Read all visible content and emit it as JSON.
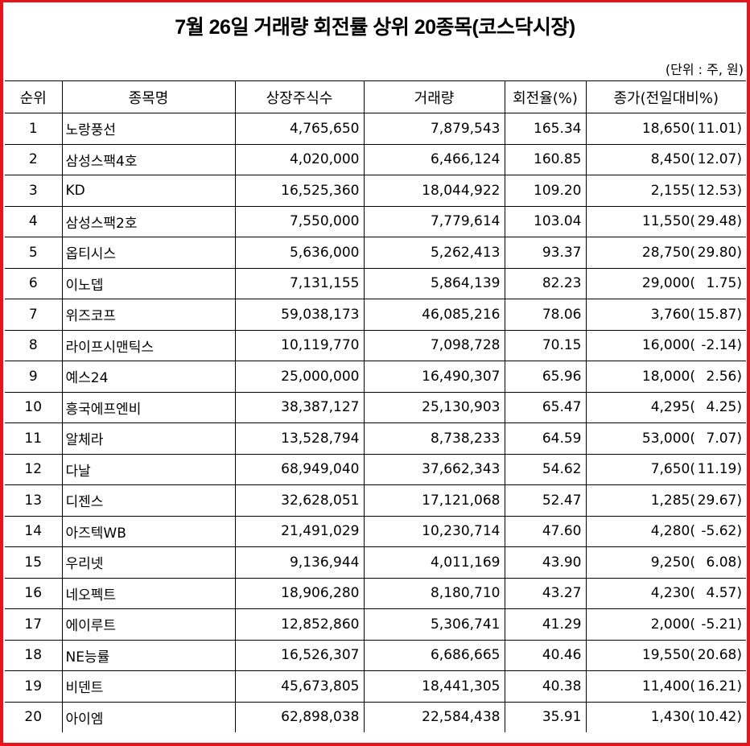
{
  "title": "7월 26일 거래량 회전률 상위 20종목(코스닥시장)",
  "unit_note": "(단위 : 주, 원)",
  "colors": {
    "frame_border": "#e8141c",
    "grid": "#000000"
  },
  "table": {
    "headers": [
      "순위",
      "종목명",
      "상장주식수",
      "거래량",
      "회전율(%)",
      "종가(전일대비%)"
    ],
    "rows": [
      {
        "rank": "1",
        "name": "노랑풍선",
        "listed_shares": "4,765,650",
        "volume": "7,879,543",
        "turnover": "165.34",
        "close": "18,650(",
        "change": "11.01)"
      },
      {
        "rank": "2",
        "name": "삼성스팩4호",
        "listed_shares": "4,020,000",
        "volume": "6,466,124",
        "turnover": "160.85",
        "close": "8,450(",
        "change": "12.07)"
      },
      {
        "rank": "3",
        "name": "KD",
        "listed_shares": "16,525,360",
        "volume": "18,044,922",
        "turnover": "109.20",
        "close": "2,155(",
        "change": "12.53)"
      },
      {
        "rank": "4",
        "name": "삼성스팩2호",
        "listed_shares": "7,550,000",
        "volume": "7,779,614",
        "turnover": "103.04",
        "close": "11,550(",
        "change": "29.48)"
      },
      {
        "rank": "5",
        "name": "옵티시스",
        "listed_shares": "5,636,000",
        "volume": "5,262,413",
        "turnover": "93.37",
        "close": "28,750(",
        "change": "29.80)"
      },
      {
        "rank": "6",
        "name": "이노뎁",
        "listed_shares": "7,131,155",
        "volume": "5,864,139",
        "turnover": "82.23",
        "close": "29,000(",
        "change": "1.75)"
      },
      {
        "rank": "7",
        "name": "위즈코프",
        "listed_shares": "59,038,173",
        "volume": "46,085,216",
        "turnover": "78.06",
        "close": "3,760(",
        "change": "15.87)"
      },
      {
        "rank": "8",
        "name": "라이프시맨틱스",
        "listed_shares": "10,119,770",
        "volume": "7,098,728",
        "turnover": "70.15",
        "close": "16,000(",
        "change": "-2.14)"
      },
      {
        "rank": "9",
        "name": "예스24",
        "listed_shares": "25,000,000",
        "volume": "16,490,307",
        "turnover": "65.96",
        "close": "18,000(",
        "change": "2.56)"
      },
      {
        "rank": "10",
        "name": "흥국에프엔비",
        "listed_shares": "38,387,127",
        "volume": "25,130,903",
        "turnover": "65.47",
        "close": "4,295(",
        "change": "4.25)"
      },
      {
        "rank": "11",
        "name": "알체라",
        "listed_shares": "13,528,794",
        "volume": "8,738,233",
        "turnover": "64.59",
        "close": "53,000(",
        "change": "7.07)"
      },
      {
        "rank": "12",
        "name": "다날",
        "listed_shares": "68,949,040",
        "volume": "37,662,343",
        "turnover": "54.62",
        "close": "7,650(",
        "change": "11.19)"
      },
      {
        "rank": "13",
        "name": "디젠스",
        "listed_shares": "32,628,051",
        "volume": "17,121,068",
        "turnover": "52.47",
        "close": "1,285(",
        "change": "29.67)"
      },
      {
        "rank": "14",
        "name": "아즈텍WB",
        "listed_shares": "21,491,029",
        "volume": "10,230,714",
        "turnover": "47.60",
        "close": "4,280(",
        "change": "-5.62)"
      },
      {
        "rank": "15",
        "name": "우리넷",
        "listed_shares": "9,136,944",
        "volume": "4,011,169",
        "turnover": "43.90",
        "close": "9,250(",
        "change": "6.08)"
      },
      {
        "rank": "16",
        "name": "네오펙트",
        "listed_shares": "18,906,280",
        "volume": "8,180,710",
        "turnover": "43.27",
        "close": "4,230(",
        "change": "4.57)"
      },
      {
        "rank": "17",
        "name": "에이루트",
        "listed_shares": "12,852,860",
        "volume": "5,306,741",
        "turnover": "41.29",
        "close": "2,000(",
        "change": "-5.21)"
      },
      {
        "rank": "18",
        "name": "NE능률",
        "listed_shares": "16,526,307",
        "volume": "6,686,665",
        "turnover": "40.46",
        "close": "19,550(",
        "change": "20.68)"
      },
      {
        "rank": "19",
        "name": "비덴트",
        "listed_shares": "45,673,805",
        "volume": "18,441,305",
        "turnover": "40.38",
        "close": "11,400(",
        "change": "16.21)"
      },
      {
        "rank": "20",
        "name": "아이엠",
        "listed_shares": "62,898,038",
        "volume": "22,584,438",
        "turnover": "35.91",
        "close": "1,430(",
        "change": "10.42)"
      }
    ]
  }
}
